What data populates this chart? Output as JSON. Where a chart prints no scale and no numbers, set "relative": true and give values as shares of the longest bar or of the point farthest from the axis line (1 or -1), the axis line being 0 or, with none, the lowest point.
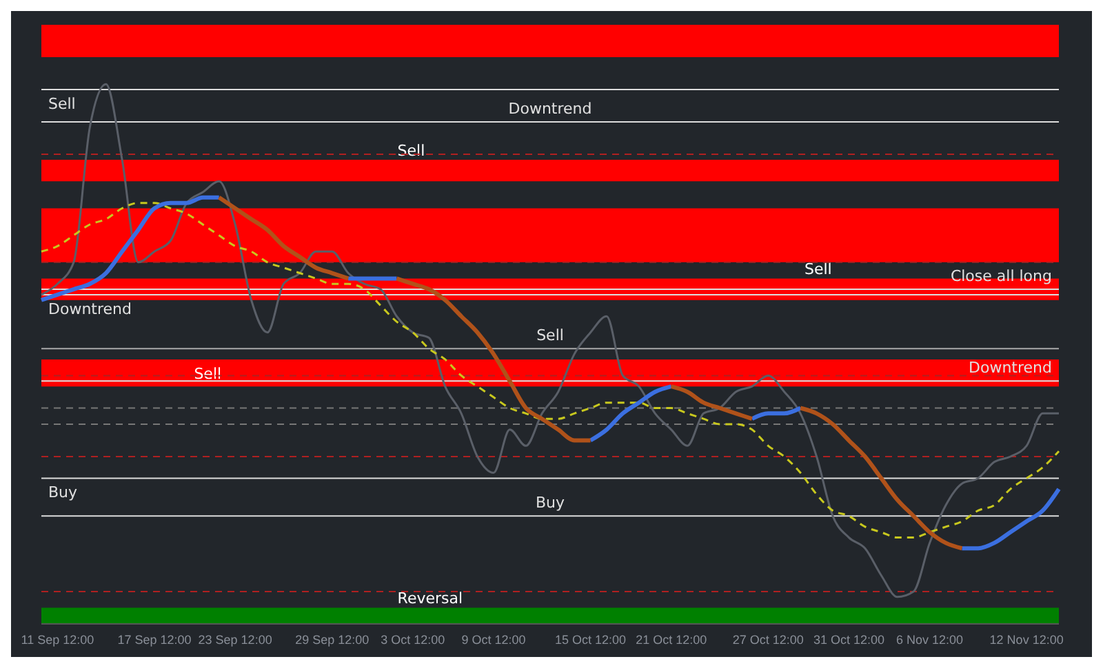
{
  "chart_data": {
    "type": "line",
    "relative": true,
    "marker": "none",
    "grid": false,
    "categories": [
      null,
      "11 Sep 12:00",
      null,
      null,
      null,
      null,
      null,
      "17 Sep 12:00",
      null,
      null,
      null,
      null,
      "23 Sep 12:00",
      null,
      null,
      null,
      null,
      null,
      "29 Sep 12:00",
      null,
      null,
      null,
      null,
      "3 Oct 12:00",
      null,
      null,
      null,
      null,
      "9 Oct 12:00",
      null,
      null,
      null,
      null,
      null,
      "15 Oct 12:00",
      null,
      null,
      null,
      null,
      "21 Oct 12:00",
      null,
      null,
      null,
      null,
      null,
      "27 Oct 12:00",
      null,
      null,
      null,
      null,
      "31 Oct 12:00",
      null,
      null,
      null,
      null,
      "6 Nov 12:00",
      null,
      null,
      null,
      null,
      null,
      "12 Nov 12:00",
      null,
      null
    ],
    "series": [
      {
        "color": "#5a5f68",
        "line_style": "solid",
        "values": [
          0.61,
          0.63,
          0.67,
          0.92,
          1.0,
          0.86,
          0.67,
          0.69,
          0.71,
          0.78,
          0.8,
          0.82,
          0.74,
          0.6,
          0.54,
          0.63,
          0.65,
          0.69,
          0.69,
          0.65,
          0.63,
          0.62,
          0.57,
          0.54,
          0.53,
          0.44,
          0.39,
          0.31,
          0.28,
          0.36,
          0.33,
          0.39,
          0.43,
          0.5,
          0.54,
          0.57,
          0.46,
          0.44,
          0.39,
          0.36,
          0.33,
          0.39,
          0.4,
          0.43,
          0.44,
          0.46,
          0.43,
          0.39,
          0.31,
          0.2,
          0.16,
          0.14,
          0.09,
          0.05,
          0.06,
          0.15,
          0.22,
          0.26,
          0.27,
          0.3,
          0.31,
          0.33,
          0.39,
          0.39
        ]
      },
      {
        "color": "#c8c81e",
        "line_style": "dashed",
        "values": [
          0.69,
          0.7,
          0.72,
          0.74,
          0.75,
          0.77,
          0.78,
          0.78,
          0.77,
          0.76,
          0.74,
          0.72,
          0.7,
          0.69,
          0.67,
          0.66,
          0.65,
          0.64,
          0.63,
          0.63,
          0.62,
          0.59,
          0.56,
          0.54,
          0.51,
          0.49,
          0.46,
          0.44,
          0.42,
          0.4,
          0.39,
          0.38,
          0.38,
          0.39,
          0.4,
          0.41,
          0.41,
          0.41,
          0.4,
          0.4,
          0.39,
          0.38,
          0.37,
          0.37,
          0.36,
          0.33,
          0.31,
          0.28,
          0.24,
          0.21,
          0.2,
          0.18,
          0.17,
          0.16,
          0.16,
          0.17,
          0.18,
          0.19,
          0.21,
          0.22,
          0.25,
          0.27,
          0.29,
          0.32
        ]
      },
      {
        "color": "#3b6fe0",
        "line_style": "solid",
        "values": [
          0.6,
          0.61,
          0.62,
          0.63,
          0.65,
          0.69,
          0.73,
          0.77,
          0.78,
          0.78,
          0.79,
          0.79,
          null,
          null,
          null,
          null,
          null,
          null,
          null,
          0.64,
          0.64,
          0.64,
          0.64,
          null,
          null,
          null,
          null,
          null,
          null,
          null,
          null,
          null,
          null,
          null,
          0.34,
          0.36,
          0.39,
          0.41,
          0.43,
          0.44,
          null,
          null,
          null,
          null,
          0.38,
          0.39,
          0.39,
          0.4,
          null,
          null,
          null,
          null,
          null,
          null,
          null,
          null,
          null,
          0.14,
          0.14,
          0.15,
          0.17,
          0.19,
          0.21,
          0.25
        ]
      },
      {
        "color": "#b0521a",
        "line_style": "solid",
        "values": [
          null,
          null,
          null,
          null,
          null,
          null,
          null,
          null,
          null,
          null,
          null,
          0.79,
          0.77,
          0.75,
          0.73,
          0.7,
          0.68,
          0.66,
          0.65,
          0.64,
          null,
          null,
          0.64,
          0.63,
          0.62,
          0.6,
          0.57,
          0.54,
          0.5,
          0.45,
          0.4,
          0.38,
          0.36,
          0.34,
          0.34,
          null,
          null,
          null,
          null,
          0.44,
          0.43,
          0.41,
          0.4,
          0.39,
          0.38,
          null,
          null,
          0.4,
          0.39,
          0.37,
          0.34,
          0.31,
          0.27,
          0.23,
          0.2,
          0.17,
          0.15,
          0.14,
          null,
          null,
          null,
          null,
          null,
          null
        ]
      }
    ],
    "bands": [
      {
        "axis": "y",
        "from": 1.05,
        "to": 1.11,
        "color": "#ff0000"
      },
      {
        "axis": "y",
        "from": 0.82,
        "to": 0.86,
        "color": "#ff0000",
        "label": "Sell"
      },
      {
        "axis": "y",
        "from": 0.67,
        "to": 0.77,
        "color": "#ff0000"
      },
      {
        "axis": "y",
        "from": 0.6,
        "to": 0.64,
        "color": "#ff0000",
        "label": "Sell"
      },
      {
        "axis": "y",
        "from": 0.44,
        "to": 0.49,
        "color": "#ff0000",
        "label": "Sell"
      },
      {
        "axis": "y",
        "from": 0.0,
        "to": 0.03,
        "color": "#008000",
        "label": "Reversal"
      }
    ],
    "ref_lines": [
      {
        "axis": "y",
        "value": 0.99,
        "label": "Sell",
        "color": "#dddddd",
        "line_style": "solid"
      },
      {
        "axis": "y",
        "value": 0.93,
        "label": "Downtrend",
        "color": "#dddddd",
        "line_style": "solid"
      },
      {
        "axis": "y",
        "value": 0.45,
        "label": "Downtrend",
        "color": "#dddddd",
        "line_style": "solid"
      },
      {
        "axis": "y",
        "value": 0.61,
        "label": "Downtrend",
        "color": "#dddddd",
        "line_style": "solid"
      },
      {
        "axis": "y",
        "value": 0.51,
        "label": "Sell",
        "color": "#aaaaaa",
        "line_style": "solid"
      },
      {
        "axis": "y",
        "value": 0.62,
        "label": "Close all long",
        "color": "#dddddd",
        "line_style": "solid"
      },
      {
        "axis": "y",
        "value": 0.27,
        "label": "Buy",
        "color": "#dddddd",
        "line_style": "solid"
      },
      {
        "axis": "y",
        "value": 0.2,
        "label": "Buy",
        "color": "#dddddd",
        "line_style": "solid"
      },
      {
        "axis": "y",
        "value": 0.87,
        "color": "#b02020",
        "line_style": "dashed"
      },
      {
        "axis": "y",
        "value": 0.67,
        "color": "#b02020",
        "line_style": "dashed"
      },
      {
        "axis": "y",
        "value": 0.46,
        "color": "#b02020",
        "line_style": "dashed"
      },
      {
        "axis": "y",
        "value": 0.31,
        "color": "#b02020",
        "line_style": "dashed"
      },
      {
        "axis": "y",
        "value": 0.06,
        "color": "#b02020",
        "line_style": "dashed"
      },
      {
        "axis": "y",
        "value": 0.4,
        "color": "#777777",
        "line_style": "dashed"
      },
      {
        "axis": "y",
        "value": 0.37,
        "color": "#777777",
        "line_style": "dashed"
      }
    ]
  }
}
